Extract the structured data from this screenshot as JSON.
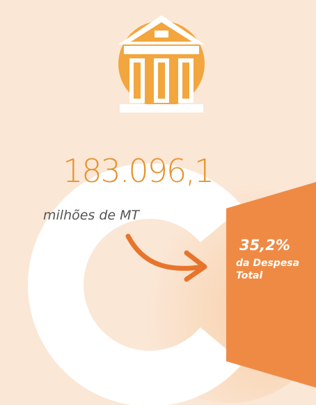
{
  "headline": {
    "amount": "183.096,1",
    "unit": "milhões de MT"
  },
  "share": {
    "percent": "35,2%",
    "caption_lines": [
      "da Despesa",
      "Total"
    ]
  }
}
